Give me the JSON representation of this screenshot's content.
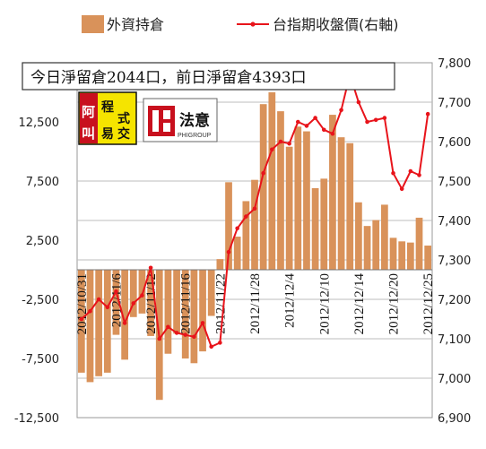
{
  "chart_data": {
    "type": "bar+line",
    "annotation": "今日淨留倉2044口，前日淨留倉4393口",
    "legend": [
      {
        "name": "外資持倉",
        "kind": "bar",
        "color": "#D9925A"
      },
      {
        "name": "台指期收盤價(右軸)",
        "kind": "line",
        "color": "#E8141B"
      }
    ],
    "y_left": {
      "min": -12500,
      "max": 17500,
      "ticks": [
        -12500,
        -7500,
        -2500,
        2500,
        7500,
        12500
      ]
    },
    "y_right": {
      "min": 6900,
      "max": 7800,
      "ticks": [
        6900,
        7000,
        7100,
        7200,
        7300,
        7400,
        7500,
        7600,
        7700,
        7800
      ]
    },
    "x_tick_labels": [
      "2012/10/31",
      "2012/11/6",
      "2012/11/12",
      "2012/11/16",
      "2012/11/22",
      "2012/11/28",
      "2012/12/4",
      "2012/12/10",
      "2012/12/14",
      "2012/12/20",
      "2012/12/25"
    ],
    "x_tick_index": [
      0,
      4,
      8,
      12,
      16,
      20,
      24,
      28,
      32,
      36,
      40
    ],
    "series": [
      {
        "name": "外資持倉",
        "type": "bar",
        "values": [
          -8700,
          -9500,
          -9000,
          -8700,
          -5500,
          -7600,
          -4000,
          -3700,
          -5600,
          -11000,
          -7100,
          -5400,
          -7500,
          -7900,
          -6900,
          -3900,
          900,
          7400,
          2800,
          5800,
          7600,
          14000,
          15000,
          13400,
          10400,
          12100,
          11700,
          6900,
          7700,
          13100,
          11200,
          10700,
          5700,
          3700,
          4200,
          5500,
          2700,
          2400,
          2300,
          4400,
          2044
        ],
        "color": "#D9925A"
      },
      {
        "name": "台指期收盤價(右軸)",
        "type": "line",
        "values": [
          7150,
          7170,
          7200,
          7180,
          7220,
          7140,
          7190,
          7210,
          7280,
          7100,
          7130,
          7115,
          7110,
          7105,
          7140,
          7080,
          7090,
          7320,
          7380,
          7410,
          7430,
          7520,
          7580,
          7600,
          7595,
          7650,
          7640,
          7660,
          7630,
          7620,
          7680,
          7770,
          7700,
          7650,
          7655,
          7660,
          7520,
          7480,
          7525,
          7515,
          7670
        ],
        "color": "#E8141B"
      }
    ]
  },
  "logos": {
    "left": {
      "char1": "程",
      "char2": "式",
      "char3": "叫",
      "char4": "交",
      "char5": "阿",
      "char6": "易"
    },
    "right": {
      "name": "法意",
      "sub": "PHIGROUP"
    }
  }
}
